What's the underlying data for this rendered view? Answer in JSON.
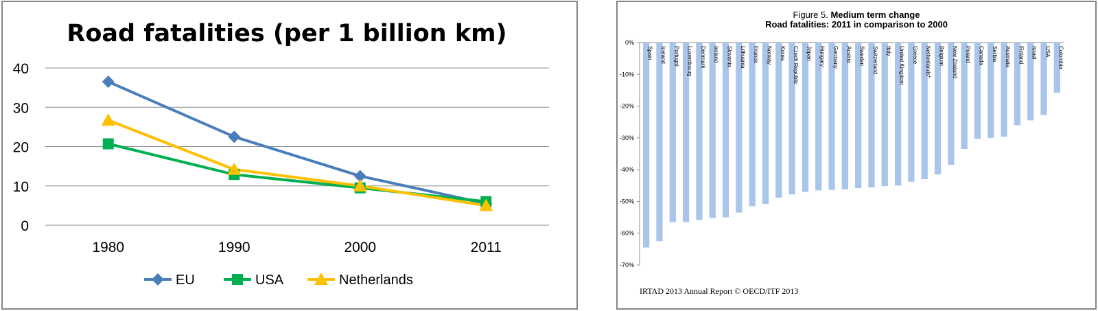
{
  "left_chart": {
    "title": "Road fatalities (per 1 billion km)",
    "colors": {
      "EU": "#4a7ebb",
      "USA": "#00b050",
      "Netherlands": "#ffc000",
      "grid": "#8c8c8c"
    }
  },
  "right_chart": {
    "figure_prefix": "Figure 5. ",
    "title_bold": "Medium term change",
    "subtitle": "Road fatalities: 2011 in comparison to 2000",
    "footer": "IRTAD 2013 Annual Report  © OECD/ITF 2013",
    "bar_color": "#a9c6ea"
  },
  "chart_data": [
    {
      "type": "line",
      "title": "Road fatalities (per 1 billion km)",
      "categories": [
        "1980",
        "1990",
        "2000",
        "2011"
      ],
      "series": [
        {
          "name": "EU",
          "marker": "diamond",
          "values": [
            36.5,
            22.5,
            12.5,
            5.5
          ]
        },
        {
          "name": "USA",
          "marker": "square",
          "values": [
            20.7,
            12.9,
            9.5,
            6.0
          ]
        },
        {
          "name": "Netherlands",
          "marker": "triangle",
          "values": [
            26.7,
            14.2,
            10.0,
            5.0
          ]
        }
      ],
      "ylim": [
        0,
        40
      ],
      "yticks": [
        "0",
        "10",
        "20",
        "30",
        "40"
      ],
      "grid": true,
      "legend": "bottom"
    },
    {
      "type": "bar",
      "title": "Medium term change",
      "subtitle": "Road fatalities: 2011 in comparison to 2000",
      "categories": [
        "Spain",
        "Iceland",
        "Portugal",
        "Luxembourg",
        "Denmark",
        "Ireland",
        "Slovenia",
        "Lithuania",
        "France",
        "Norway",
        "Korea",
        "Czech Republic",
        "Japan",
        "Hungary",
        "Germany",
        "Austria",
        "Sweden",
        "Switzerland",
        "Italy",
        "United Kingdom",
        "Greece",
        "Netherlands*",
        "Belgium",
        "New Zealand",
        "Poland",
        "Canada",
        "Serbia",
        "Australia",
        "Finland",
        "Israel",
        "USA",
        "Colombia"
      ],
      "values": [
        -64.5,
        -62.5,
        -56.5,
        -56.5,
        -55.8,
        -55.2,
        -55.0,
        -53.5,
        -51.5,
        -50.8,
        -48.8,
        -47.8,
        -47.0,
        -46.5,
        -46.4,
        -46.2,
        -45.8,
        -45.6,
        -45.2,
        -45.0,
        -43.8,
        -43.0,
        -41.5,
        -38.5,
        -33.5,
        -30.3,
        -30.0,
        -29.6,
        -26.0,
        -24.5,
        -22.8,
        -15.8
      ],
      "ylim": [
        -70,
        0
      ],
      "yticks": [
        "0%",
        "-10%",
        "-20%",
        "-30%",
        "-40%",
        "-50%",
        "-60%",
        "-70%"
      ],
      "ylabel": "",
      "grid": false,
      "legend": "none"
    }
  ]
}
